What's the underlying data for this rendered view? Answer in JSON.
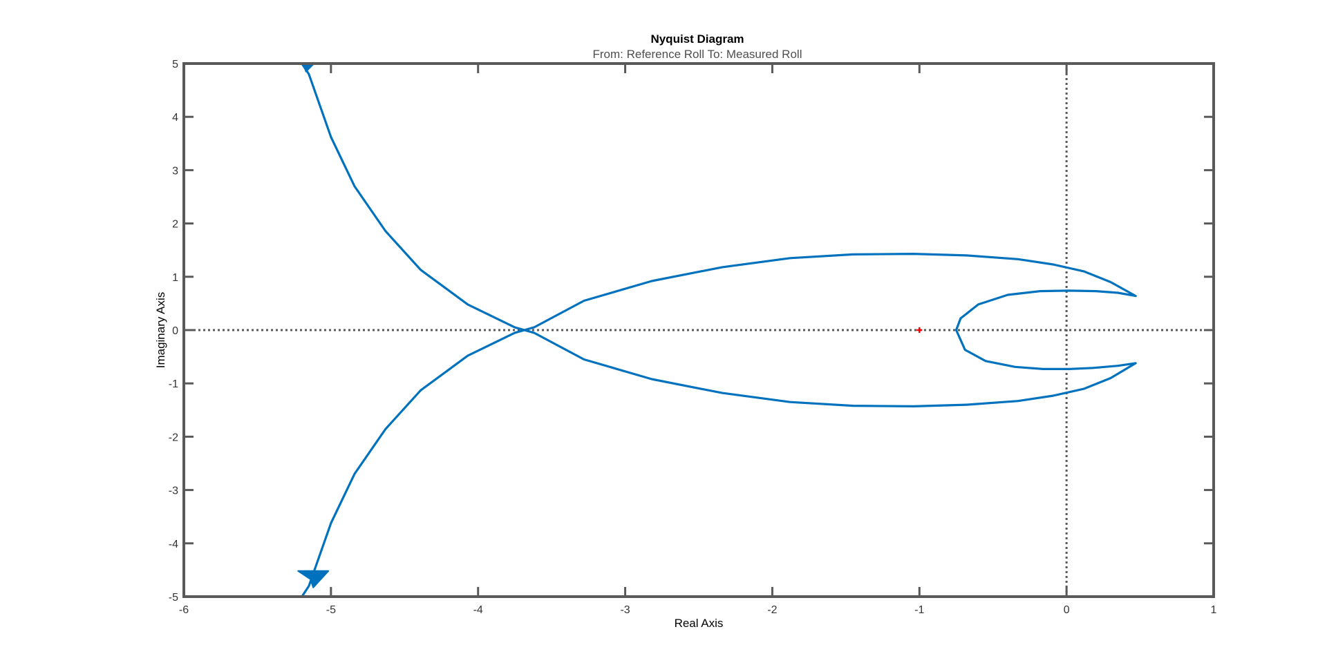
{
  "chart_data": {
    "type": "line",
    "title": "Nyquist Diagram",
    "subtitle": "From: Reference Roll  To: Measured Roll",
    "xlabel": "Real Axis",
    "ylabel": "Imaginary Axis",
    "xlim": [
      -6,
      1
    ],
    "ylim": [
      -5,
      5
    ],
    "xticks": [
      -6,
      -5,
      -4,
      -3,
      -2,
      -1,
      0,
      1
    ],
    "yticks": [
      -5,
      -4,
      -3,
      -2,
      -1,
      0,
      1,
      2,
      3,
      4,
      5
    ],
    "xtick_labels": [
      "-6",
      "-5",
      "-4",
      "-3",
      "-2",
      "-1",
      "0",
      "1"
    ],
    "ytick_labels": [
      "-5",
      "-4",
      "-3",
      "-2",
      "-1",
      "0",
      "1",
      "2",
      "3",
      "4",
      "5"
    ],
    "grid": false,
    "zero_lines": true,
    "critical_point": {
      "x": -1,
      "y": 0,
      "color": "#ff0000"
    },
    "line_color": "#0072bd",
    "axis_color": "#595959",
    "series": [
      {
        "x": [
          -5.21,
          -5.15,
          -5.0,
          -4.84,
          -4.63,
          -4.39,
          -4.07,
          -3.75,
          -3.62,
          -3.28,
          -2.82,
          -2.34,
          -1.88,
          -1.45,
          -1.04,
          -0.68,
          -0.33,
          -0.09,
          0.12,
          0.3,
          0.47,
          0.35,
          0.18,
          0.02,
          -0.16,
          -0.35,
          -0.55,
          -0.69,
          -0.75,
          -0.72,
          -0.6,
          -0.4,
          -0.18,
          0.02,
          0.2,
          0.35,
          0.47,
          0.3,
          0.12,
          -0.09,
          -0.33,
          -0.68,
          -1.04,
          -1.45,
          -1.88,
          -2.34,
          -2.82,
          -3.28,
          -3.62,
          -3.75,
          -4.07,
          -4.39,
          -4.63,
          -4.84,
          -5.0,
          -5.15,
          -5.21
        ],
        "y": [
          5.05,
          4.8,
          3.62,
          2.7,
          1.86,
          1.13,
          0.48,
          0.05,
          -0.05,
          -0.55,
          -0.92,
          -1.18,
          -1.35,
          -1.42,
          -1.43,
          -1.4,
          -1.33,
          -1.23,
          -1.1,
          -0.9,
          -0.62,
          -0.67,
          -0.71,
          -0.73,
          -0.73,
          -0.69,
          -0.58,
          -0.37,
          0.0,
          0.22,
          0.48,
          0.66,
          0.73,
          0.74,
          0.73,
          0.7,
          0.64,
          0.9,
          1.1,
          1.23,
          1.33,
          1.4,
          1.43,
          1.42,
          1.35,
          1.18,
          0.92,
          0.55,
          0.05,
          -0.05,
          -0.48,
          -1.13,
          -1.86,
          -2.7,
          -3.62,
          -4.8,
          -5.05
        ]
      }
    ],
    "arrows": [
      {
        "x": -5.17,
        "y": 4.9,
        "direction": "up"
      },
      {
        "x": -5.13,
        "y": -4.7,
        "direction": "down"
      }
    ]
  }
}
